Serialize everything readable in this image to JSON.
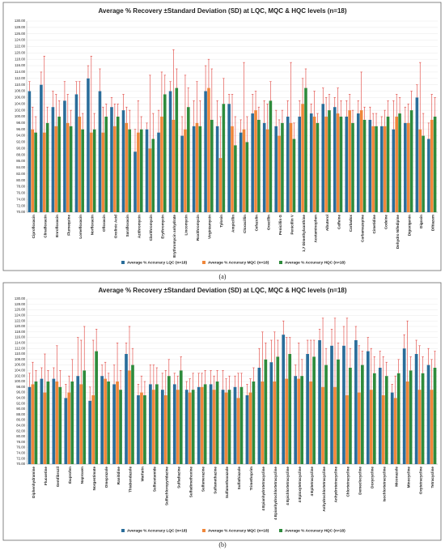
{
  "chart_data": [
    {
      "type": "bar",
      "title": "Average % Recovery ±Standard Deviation (SD) at LQC, MQC & HQC levels (n=18)",
      "caption": "(a)",
      "grid": true,
      "categories": [
        "Ciprofloxacin",
        "Clinafloxacin",
        "Enrofloxacin",
        "Flumequine",
        "Lomefloxacin",
        "Norfloxacin",
        "Ofloxacin",
        "Oxolinic Acid",
        "Sarafloxacin",
        "Azithromycin",
        "Clarithromycin",
        "Erythromycin",
        "Erythromycin anhydrate",
        "Lincomycin",
        "Roxithromycin",
        "Virginiamycin",
        "Tylosin",
        "Ampicillin",
        "Cloxacillin",
        "Cefazolin",
        "Oxacillin",
        "Penicillin G",
        "Penicillin V",
        "1,7 Dimethylxanthine",
        "Acetaminophen",
        "Albuterol",
        "Caffeine",
        "Carbadox",
        "Carbamazepine",
        "Cimetidine",
        "Codeine",
        "Dehydro Nifedipine",
        "Digoxigenin",
        "Digoxin",
        "Diltiazem"
      ],
      "series": [
        {
          "name": "Average % Accuracy LQC (n=18)",
          "color": "#2a6d9a",
          "error_color": "#e0403a",
          "values": [
            108,
            110,
            103,
            105,
            107,
            112,
            108,
            103,
            102,
            89,
            96,
            95,
            108,
            94,
            97,
            108,
            97,
            104,
            95,
            101,
            98,
            97,
            100,
            100,
            101,
            104,
            103,
            100,
            101,
            99,
            97,
            96,
            98,
            106,
            93
          ],
          "errors": [
            3,
            4,
            5,
            6,
            4,
            4,
            7,
            3,
            5,
            7,
            2,
            7,
            3,
            6,
            8,
            8,
            8,
            3,
            4,
            6,
            7,
            5,
            5,
            5,
            3,
            5,
            3,
            5,
            4,
            4,
            3,
            9,
            5,
            4,
            5
          ]
        },
        {
          "name": "Average % Accuracy MQC (n=18)",
          "color": "#f0873a",
          "error_color": "#e0403a",
          "values": [
            96,
            95,
            97,
            98,
            100,
            95,
            95,
            97,
            98,
            95,
            90,
            100,
            99,
            96,
            98,
            109,
            87,
            97,
            96,
            102,
            96,
            94,
            98,
            104,
            100,
            100,
            101,
            102,
            102,
            97,
            97,
            100,
            98,
            96,
            99
          ],
          "errors": [
            7,
            24,
            10,
            9,
            11,
            24,
            8,
            7,
            5,
            10,
            23,
            14,
            22,
            17,
            13,
            9,
            13,
            10,
            21,
            6,
            8,
            5,
            19,
            8,
            8,
            6,
            8,
            5,
            12,
            4,
            5,
            7,
            6,
            21,
            8
          ]
        },
        {
          "name": "Average % Accuracy HQC (n=18)",
          "color": "#2e8b3c",
          "error_color": "#e0403a",
          "values": [
            95,
            98,
            100,
            97,
            96,
            96,
            100,
            100,
            96,
            96,
            93,
            107,
            109,
            103,
            97,
            99,
            104,
            91,
            92,
            99,
            105,
            98,
            93,
            109,
            98,
            102,
            100,
            98,
            99,
            97,
            100,
            101,
            102,
            94,
            100
          ],
          "errors": [
            5,
            5,
            5,
            5,
            5,
            5,
            4,
            4,
            6,
            4,
            8,
            6,
            6,
            6,
            8,
            16,
            8,
            9,
            8,
            4,
            6,
            4,
            5,
            6,
            3,
            5,
            5,
            4,
            4,
            4,
            5,
            5,
            6,
            7,
            6
          ]
        }
      ],
      "ylim": [
        70,
        130
      ],
      "yticks": [
        {
          "value": 70,
          "label": "70.00"
        },
        {
          "value": 72,
          "label": "72.00"
        },
        {
          "value": 74,
          "label": "74.00"
        },
        {
          "value": 76,
          "label": "76.00"
        },
        {
          "value": 78,
          "label": "78.00"
        },
        {
          "value": 80,
          "label": "80.00"
        },
        {
          "value": 82,
          "label": "82.00"
        },
        {
          "value": 84,
          "label": "84.00"
        },
        {
          "value": 86,
          "label": "86.00"
        },
        {
          "value": 88,
          "label": "88.00"
        },
        {
          "value": 90,
          "label": "90.00"
        },
        {
          "value": 92,
          "label": "92.00"
        },
        {
          "value": 94,
          "label": "94.00"
        },
        {
          "value": 96,
          "label": "96.00"
        },
        {
          "value": 98,
          "label": "98.00"
        },
        {
          "value": 100,
          "label": "100.00"
        },
        {
          "value": 102,
          "label": "102.00"
        },
        {
          "value": 104,
          "label": "104.00"
        },
        {
          "value": 106,
          "label": "106.00"
        },
        {
          "value": 108,
          "label": "108.00"
        },
        {
          "value": 110,
          "label": "110.00"
        },
        {
          "value": 112,
          "label": "112.00"
        },
        {
          "value": 114,
          "label": "114.00"
        },
        {
          "value": 116,
          "label": "116.00"
        },
        {
          "value": 118,
          "label": "118.00"
        },
        {
          "value": 120,
          "label": "120.00"
        },
        {
          "value": 122,
          "label": "122.00"
        },
        {
          "value": 124,
          "label": "124.00"
        },
        {
          "value": 126,
          "label": "126.00"
        },
        {
          "value": 128,
          "label": "128.00"
        },
        {
          "value": 130,
          "label": "130.00"
        }
      ]
    },
    {
      "type": "bar",
      "title": "Average % Recovery ±Standard Deviation (SD) at LQC, MQC & HQC levels (n=18)",
      "caption": "(b)",
      "grid": true,
      "categories": [
        "Diphenhydramine",
        "Fluoxetine",
        "Gemfibrozil",
        "Ibuprofen",
        "Naproxen",
        "Norgestimate",
        "Omeprazole",
        "Ranitidine",
        "Thiabendazole",
        "Warfarin",
        "Sulfacetamide",
        "Sulfachloropyridazine",
        "Sulfadiazine",
        "Sulfadimethoxine",
        "Sulfamerazine",
        "Sulfamethazine",
        "Sulfamethoxazole",
        "Sulfathiazole",
        "Trimethoprim",
        "4 Epianhydrotetracycline",
        "4 Epianhydrochlortetracycline",
        "4 Epichlortetracycline",
        "4 Epioxytetracycline",
        "4 Epitetracycline",
        "Anhydrochlortetracycline",
        "Anhydrotetracycline",
        "Chlortetracycline",
        "Demeclocycline",
        "Doxycycline",
        "Isochlortetracycline",
        "Miconazole",
        "Minocycline",
        "Oxytetracycline",
        "Tetracycline"
      ],
      "series": [
        {
          "name": "Average % Accuracy LQC (n=18)",
          "color": "#2a6d9a",
          "error_color": "#e0403a",
          "values": [
            98,
            101,
            101,
            94,
            102,
            93,
            102,
            99,
            110,
            95,
            99,
            97,
            99,
            97,
            98,
            99,
            97,
            98,
            95,
            105,
            107,
            117,
            102,
            110,
            115,
            113,
            113,
            115,
            111,
            105,
            96,
            112,
            110,
            106
          ],
          "errors": [
            5,
            4,
            4,
            5,
            14,
            5,
            4,
            7,
            4,
            4,
            7,
            6,
            4,
            3,
            5,
            5,
            7,
            4,
            4,
            7,
            8,
            5,
            4,
            5,
            4,
            6,
            7,
            5,
            5,
            6,
            3,
            5,
            5,
            6
          ]
        },
        {
          "name": "Average % Accuracy MQC (n=18)",
          "color": "#f0873a",
          "error_color": "#e0403a",
          "values": [
            99,
            96,
            100,
            96,
            99,
            95,
            101,
            100,
            104,
            96,
            97,
            95,
            97,
            96,
            98,
            97,
            96,
            94,
            96,
            100,
            100,
            101,
            101,
            100,
            98,
            98,
            95,
            96,
            97,
            95,
            94,
            100,
            97,
            97
          ],
          "errors": [
            8,
            14,
            13,
            6,
            16,
            20,
            6,
            14,
            16,
            6,
            9,
            9,
            5,
            5,
            5,
            5,
            5,
            9,
            5,
            18,
            18,
            15,
            13,
            15,
            25,
            25,
            28,
            17,
            15,
            14,
            8,
            22,
            16,
            11
          ]
        },
        {
          "name": "Average % Accuracy HQC (n=18)",
          "color": "#2e8b3c",
          "error_color": "#e0403a",
          "values": [
            100,
            100,
            98,
            100,
            104,
            111,
            100,
            97,
            106,
            95,
            99,
            102,
            104,
            97,
            99,
            100,
            97,
            98,
            100,
            108,
            109,
            110,
            102,
            109,
            106,
            108,
            105,
            106,
            103,
            102,
            103,
            104,
            103,
            105
          ],
          "errors": [
            4,
            4,
            6,
            8,
            16,
            8,
            3,
            7,
            6,
            5,
            6,
            6,
            5,
            6,
            5,
            4,
            5,
            5,
            5,
            6,
            6,
            6,
            6,
            6,
            6,
            6,
            7,
            5,
            6,
            5,
            5,
            5,
            6,
            6
          ]
        }
      ],
      "ylim": [
        70,
        130
      ],
      "yticks": [
        {
          "value": 70,
          "label": "70.00"
        },
        {
          "value": 72,
          "label": "72.00"
        },
        {
          "value": 74,
          "label": "74.00"
        },
        {
          "value": 76,
          "label": "76.00"
        },
        {
          "value": 78,
          "label": "78.00"
        },
        {
          "value": 80,
          "label": "80.00"
        },
        {
          "value": 82,
          "label": "82.00"
        },
        {
          "value": 84,
          "label": "84.00"
        },
        {
          "value": 86,
          "label": "86.00"
        },
        {
          "value": 88,
          "label": "88.00"
        },
        {
          "value": 90,
          "label": "90.00"
        },
        {
          "value": 92,
          "label": "92.00"
        },
        {
          "value": 94,
          "label": "94.00"
        },
        {
          "value": 96,
          "label": "96.00"
        },
        {
          "value": 98,
          "label": "98.00"
        },
        {
          "value": 100,
          "label": "100.00"
        },
        {
          "value": 102,
          "label": "102.00"
        },
        {
          "value": 104,
          "label": "104.00"
        },
        {
          "value": 106,
          "label": "106.00"
        },
        {
          "value": 108,
          "label": "108.00"
        },
        {
          "value": 110,
          "label": "110.00"
        },
        {
          "value": 112,
          "label": "112.00"
        },
        {
          "value": 114,
          "label": "114.00"
        },
        {
          "value": 116,
          "label": "116.00"
        },
        {
          "value": 118,
          "label": "118.00"
        },
        {
          "value": 120,
          "label": "120.00"
        },
        {
          "value": 122,
          "label": "122.00"
        },
        {
          "value": 124,
          "label": "124.00"
        },
        {
          "value": 126,
          "label": "126.00"
        },
        {
          "value": 128,
          "label": "128.00"
        },
        {
          "value": 130,
          "label": "130.00"
        }
      ]
    }
  ]
}
